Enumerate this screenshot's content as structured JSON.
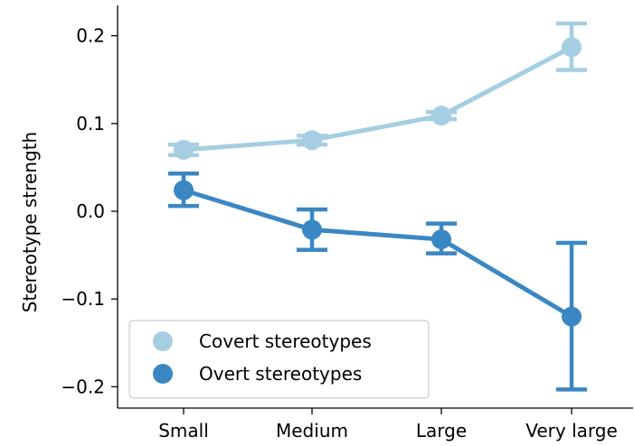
{
  "chart_data": {
    "type": "line",
    "title": "",
    "xlabel": "",
    "ylabel": "Stereotype strength",
    "categories": [
      "Small",
      "Medium",
      "Large",
      "Very large"
    ],
    "ylim": [
      -0.22,
      0.24
    ],
    "yticks": [
      0.2,
      0.1,
      0.0,
      -0.1,
      -0.2
    ],
    "ytick_labels": [
      "0.2",
      "0.1",
      "0.0",
      "−0.1",
      "−0.2"
    ],
    "grid": false,
    "legend_position": "bottom-left",
    "series": [
      {
        "name": "Covert stereotypes",
        "color": "#a6cee3",
        "values": [
          0.07,
          0.081,
          0.109,
          0.187
        ],
        "err_low": [
          0.064,
          0.076,
          0.105,
          0.161
        ],
        "err_high": [
          0.076,
          0.086,
          0.113,
          0.214
        ]
      },
      {
        "name": "Overt stereotypes",
        "color": "#3b87c4",
        "values": [
          0.024,
          -0.021,
          -0.032,
          -0.12
        ],
        "err_low": [
          0.006,
          -0.044,
          -0.048,
          -0.203
        ],
        "err_high": [
          0.043,
          0.002,
          -0.014,
          -0.036
        ]
      }
    ]
  }
}
